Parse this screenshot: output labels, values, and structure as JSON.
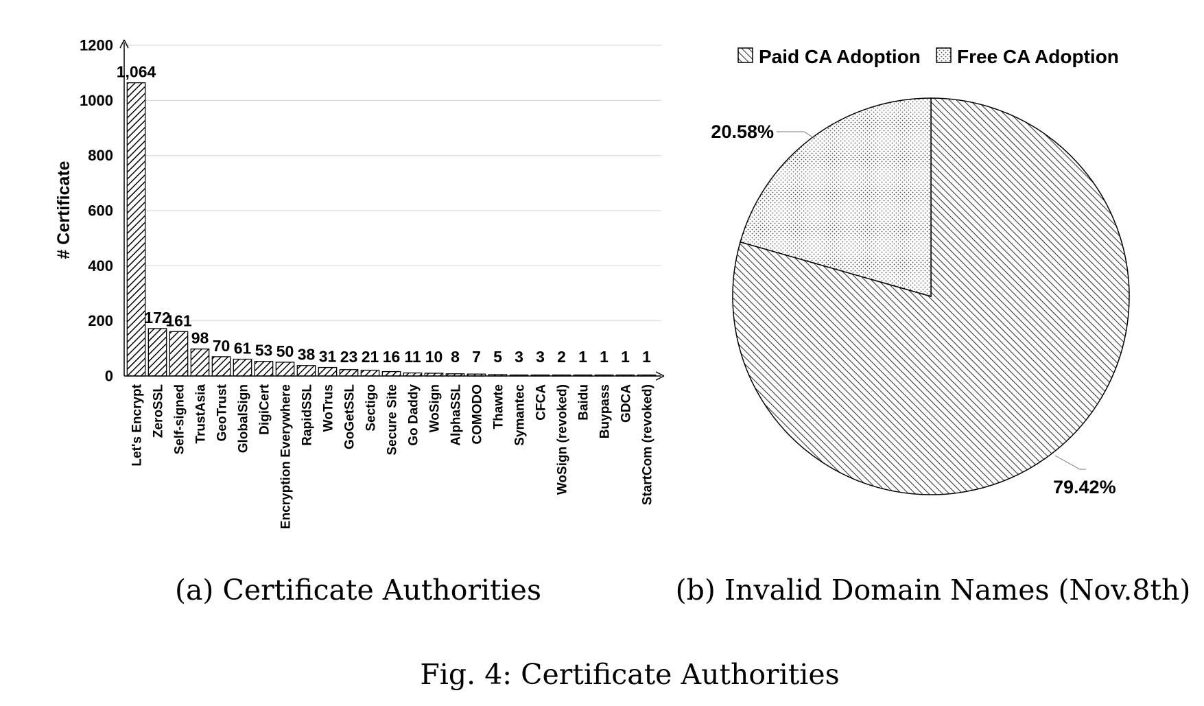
{
  "chart_data": [
    {
      "type": "bar",
      "ylabel": "# Certificate",
      "xlabel": "",
      "ylim": [
        0,
        1200
      ],
      "yticks": [
        0,
        200,
        400,
        600,
        800,
        1000,
        1200
      ],
      "grid": true,
      "categories": [
        "Let's Encrypt",
        "ZeroSSL",
        "Self-signed",
        "TrustAsia",
        "GeoTrust",
        "GlobalSign",
        "DigiCert",
        "Encryption Everywhere",
        "RapidSSL",
        "WoTrus",
        "GoGetSSL",
        "Sectigo",
        "Secure Site",
        "Go Daddy",
        "WoSign",
        "AlphaSSL",
        "COMODO",
        "Thawte",
        "Symantec",
        "CFCA",
        "WoSign (revoked)",
        "Baidu",
        "Buypass",
        "GDCA",
        "StartCom (revoked)"
      ],
      "values": [
        1064,
        172,
        161,
        98,
        70,
        61,
        53,
        50,
        38,
        31,
        23,
        21,
        16,
        11,
        10,
        8,
        7,
        5,
        3,
        3,
        2,
        1,
        1,
        1,
        1
      ],
      "data_labels": [
        "1,064",
        "172",
        "161",
        "98",
        "70",
        "61",
        "53",
        "50",
        "38",
        "31",
        "23",
        "21",
        "16",
        "11",
        "10",
        "8",
        "7",
        "5",
        "3",
        "3",
        "2",
        "1",
        "1",
        "1",
        "1"
      ],
      "caption": "(a) Certificate Authorities"
    },
    {
      "type": "pie",
      "legend": [
        "Paid CA Adoption",
        "Free CA Adoption"
      ],
      "legend_position": "top",
      "slices": [
        {
          "name": "Paid CA Adoption",
          "value": 79.42,
          "label": "79.42%"
        },
        {
          "name": "Free CA Adoption",
          "value": 20.58,
          "label": "20.58%"
        }
      ],
      "caption": "(b) Invalid Domain Names (Nov.8th)"
    }
  ],
  "figure_caption": "Fig. 4: Certificate Authorities"
}
